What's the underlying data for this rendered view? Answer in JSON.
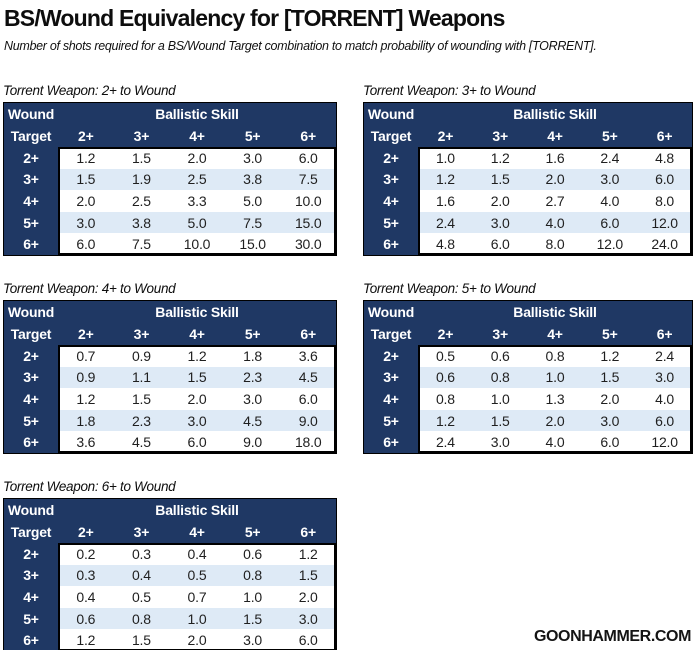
{
  "page": {
    "title": "BS/Wound Equivalency for [TORRENT] Weapons",
    "subtitle": "Number of shots required for a BS/Wound Target combination to match probability of wounding with [TORRENT].",
    "watermark": "GOONHAMMER.COM"
  },
  "colors": {
    "header_navy": "#1F3864",
    "band_blue": "#DEEAF6",
    "row_white": "#FFFFFF",
    "header_text": "#FFFFFF",
    "value_text": "#1F1F1F",
    "border_black": "#000000"
  },
  "table_template": {
    "corner_top": "Wound",
    "corner_bottom": "Target",
    "col_group_header": "Ballistic Skill",
    "col_headers": [
      "2+",
      "3+",
      "4+",
      "5+",
      "6+"
    ],
    "row_headers": [
      "2+",
      "3+",
      "4+",
      "5+",
      "6+"
    ]
  },
  "chart_data": [
    {
      "type": "table",
      "title": "Torrent Weapon: 2+ to Wound",
      "col_group": "Ballistic Skill",
      "columns": [
        "2+",
        "3+",
        "4+",
        "5+",
        "6+"
      ],
      "rows": [
        "2+",
        "3+",
        "4+",
        "5+",
        "6+"
      ],
      "values": [
        [
          1.2,
          1.5,
          2.0,
          3.0,
          6.0
        ],
        [
          1.5,
          1.9,
          2.5,
          3.8,
          7.5
        ],
        [
          2.0,
          2.5,
          3.3,
          5.0,
          10.0
        ],
        [
          3.0,
          3.8,
          5.0,
          7.5,
          15.0
        ],
        [
          6.0,
          7.5,
          10.0,
          15.0,
          30.0
        ]
      ]
    },
    {
      "type": "table",
      "title": "Torrent Weapon: 3+ to Wound",
      "col_group": "Ballistic Skill",
      "columns": [
        "2+",
        "3+",
        "4+",
        "5+",
        "6+"
      ],
      "rows": [
        "2+",
        "3+",
        "4+",
        "5+",
        "6+"
      ],
      "values": [
        [
          1.0,
          1.2,
          1.6,
          2.4,
          4.8
        ],
        [
          1.2,
          1.5,
          2.0,
          3.0,
          6.0
        ],
        [
          1.6,
          2.0,
          2.7,
          4.0,
          8.0
        ],
        [
          2.4,
          3.0,
          4.0,
          6.0,
          12.0
        ],
        [
          4.8,
          6.0,
          8.0,
          12.0,
          24.0
        ]
      ]
    },
    {
      "type": "table",
      "title": "Torrent Weapon: 4+ to Wound",
      "col_group": "Ballistic Skill",
      "columns": [
        "2+",
        "3+",
        "4+",
        "5+",
        "6+"
      ],
      "rows": [
        "2+",
        "3+",
        "4+",
        "5+",
        "6+"
      ],
      "values": [
        [
          0.7,
          0.9,
          1.2,
          1.8,
          3.6
        ],
        [
          0.9,
          1.1,
          1.5,
          2.3,
          4.5
        ],
        [
          1.2,
          1.5,
          2.0,
          3.0,
          6.0
        ],
        [
          1.8,
          2.3,
          3.0,
          4.5,
          9.0
        ],
        [
          3.6,
          4.5,
          6.0,
          9.0,
          18.0
        ]
      ]
    },
    {
      "type": "table",
      "title": "Torrent Weapon: 5+ to Wound",
      "col_group": "Ballistic Skill",
      "columns": [
        "2+",
        "3+",
        "4+",
        "5+",
        "6+"
      ],
      "rows": [
        "2+",
        "3+",
        "4+",
        "5+",
        "6+"
      ],
      "values": [
        [
          0.5,
          0.6,
          0.8,
          1.2,
          2.4
        ],
        [
          0.6,
          0.8,
          1.0,
          1.5,
          3.0
        ],
        [
          0.8,
          1.0,
          1.3,
          2.0,
          4.0
        ],
        [
          1.2,
          1.5,
          2.0,
          3.0,
          6.0
        ],
        [
          2.4,
          3.0,
          4.0,
          6.0,
          12.0
        ]
      ]
    },
    {
      "type": "table",
      "title": "Torrent Weapon: 6+ to Wound",
      "col_group": "Ballistic Skill",
      "columns": [
        "2+",
        "3+",
        "4+",
        "5+",
        "6+"
      ],
      "rows": [
        "2+",
        "3+",
        "4+",
        "5+",
        "6+"
      ],
      "values": [
        [
          0.2,
          0.3,
          0.4,
          0.6,
          1.2
        ],
        [
          0.3,
          0.4,
          0.5,
          0.8,
          1.5
        ],
        [
          0.4,
          0.5,
          0.7,
          1.0,
          2.0
        ],
        [
          0.6,
          0.8,
          1.0,
          1.5,
          3.0
        ],
        [
          1.2,
          1.5,
          2.0,
          3.0,
          6.0
        ]
      ]
    }
  ]
}
